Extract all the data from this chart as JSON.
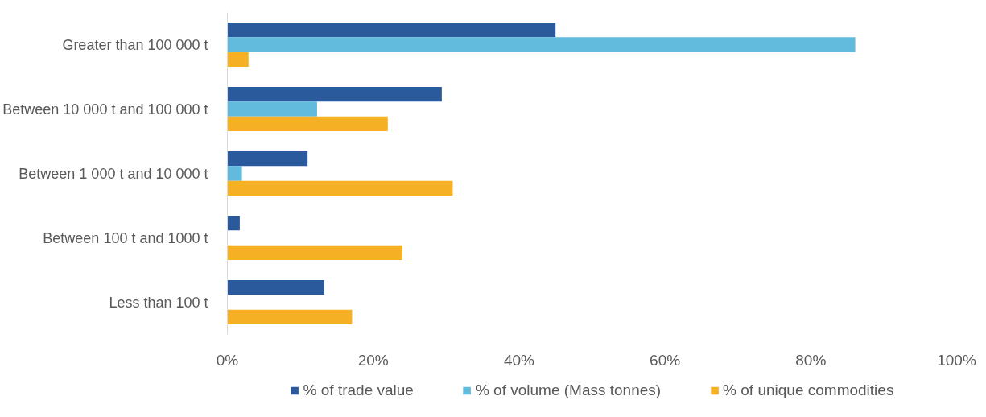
{
  "chart_data": {
    "type": "bar",
    "orientation": "horizontal",
    "categories": [
      "Greater than 100 000 t",
      "Between 10 000 t and 100 000 t",
      "Between 1 000 t and 10 000 t",
      "Between 100 t and 1000 t",
      "Less than 100 t"
    ],
    "series": [
      {
        "name": "% of trade value",
        "color": "#2a5a9b",
        "values": [
          45.0,
          29.4,
          11.0,
          1.7,
          13.3
        ]
      },
      {
        "name": "% of volume (Mass tonnes)",
        "color": "#62bbdc",
        "values": [
          86.1,
          12.3,
          2.0,
          0,
          0
        ]
      },
      {
        "name": "% of unique commodities",
        "color": "#f5b123",
        "values": [
          2.9,
          22.0,
          30.9,
          24.0,
          17.1
        ]
      }
    ],
    "xlim": [
      0,
      100
    ],
    "xticks": [
      {
        "value": 0,
        "label": "0%"
      },
      {
        "value": 20,
        "label": "20%"
      },
      {
        "value": 40,
        "label": "40%"
      },
      {
        "value": 60,
        "label": "60%"
      },
      {
        "value": 80,
        "label": "80%"
      },
      {
        "value": 100,
        "label": "100%"
      }
    ],
    "grid": false,
    "legend": "bottom"
  }
}
